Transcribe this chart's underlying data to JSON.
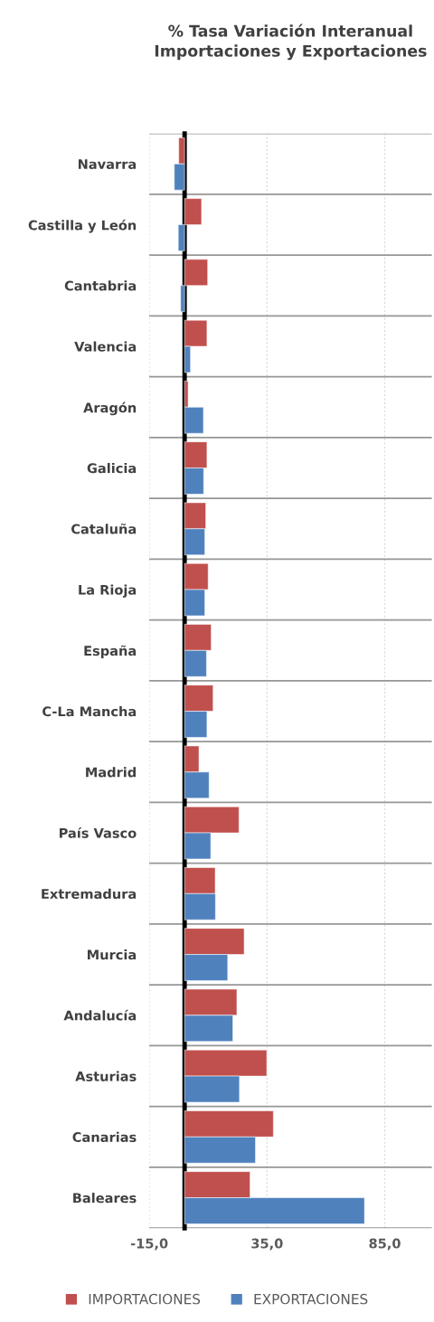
{
  "chart_data": {
    "type": "bar",
    "orientation": "horizontal",
    "title": "% Tasa Variación Interanual\nImportaciones y Exportaciones",
    "categories": [
      "Navarra",
      "Castilla y León",
      "Cantabria",
      "Valencia",
      "Aragón",
      "Galicia",
      "Cataluña",
      "La Rioja",
      "España",
      "C-La Mancha",
      "Madrid",
      "País Vasco",
      "Extremadura",
      "Murcia",
      "Andalucía",
      "Asturias",
      "Canarias",
      "Baleares"
    ],
    "series": [
      {
        "name": "IMPORTACIONES",
        "color": "#c0504d",
        "values": [
          -2.5,
          7.2,
          9.8,
          9.5,
          1.5,
          9.5,
          9.0,
          10.0,
          11.3,
          12.1,
          6.1,
          23.1,
          13.0,
          25.3,
          22.2,
          34.9,
          37.7,
          27.8
        ]
      },
      {
        "name": "EXPORTACIONES",
        "color": "#4f81bd",
        "values": [
          -4.4,
          -2.7,
          -1.7,
          2.5,
          8.0,
          8.1,
          8.6,
          8.6,
          9.3,
          9.5,
          10.4,
          11.1,
          13.1,
          18.3,
          20.5,
          23.3,
          30.1,
          76.4
        ]
      }
    ],
    "xlim": [
      -15,
      105
    ],
    "xticks": [
      {
        "value": -15,
        "label": "-15,0"
      },
      {
        "value": 35,
        "label": "35,0"
      },
      {
        "value": 85,
        "label": "85,0"
      }
    ],
    "grid": true,
    "legend": "bottom"
  }
}
